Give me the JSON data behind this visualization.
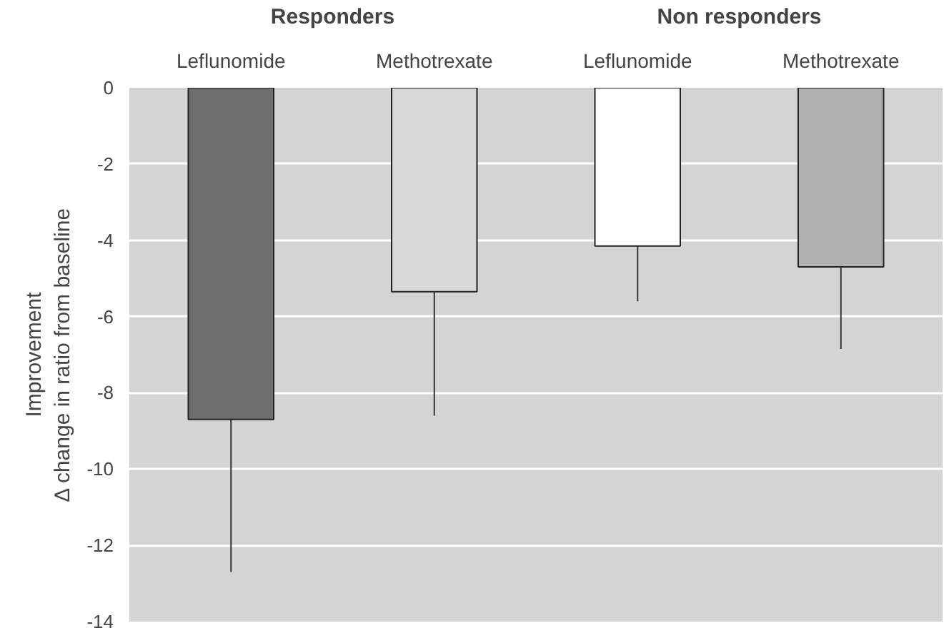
{
  "chart_data": {
    "type": "bar",
    "categories": [
      "Leflunomide",
      "Methotrexate",
      "Leflunomide",
      "Methotrexate"
    ],
    "values": [
      -8.7,
      -5.35,
      -4.15,
      -4.7
    ],
    "colors": [
      "#6e6e6e",
      "#d9d9d9",
      "#ffffff",
      "#b0b0b0"
    ],
    "errors": [
      [
        -12.7,
        -8.7
      ],
      [
        -8.6,
        -5.35
      ],
      [
        -5.6,
        -4.15
      ],
      [
        -6.85,
        -4.7
      ]
    ],
    "ylabel": "Improvement\nΔ change in ratio from baseline",
    "annotations": [
      "Responders",
      "Non responders"
    ],
    "ylim": [
      -14,
      0
    ],
    "yticks": [
      -14,
      -12,
      -10,
      -8,
      -6,
      -4,
      -2,
      0
    ],
    "grid": "y"
  }
}
